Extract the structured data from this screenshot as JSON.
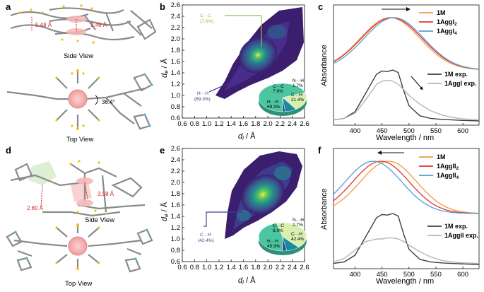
{
  "panels": {
    "a": {
      "label": "a",
      "side_view": "Side View",
      "top_view": "Top View",
      "d1": "5.48 Å",
      "d2": "3.46 Å",
      "angle": "36.4°"
    },
    "b": {
      "label": "b",
      "ylabel_main": "d",
      "ylabel_sub": "e",
      "ylabel_unit": " / Å",
      "xlabel_main": "d",
      "xlabel_sub": "i",
      "xlabel_unit": " / Å",
      "ann_cc": "C···C",
      "ann_cc_pct": "(7.6%)",
      "ann_hh": "H···H",
      "ann_hh_pct": "(69.3%)"
    },
    "c": {
      "label": "c",
      "ylabel": "Absorbance",
      "xlabel": "Wavelength / nm",
      "legend_top": [
        "1M",
        "1AggI",
        "1AggI"
      ],
      "legend_top_sub": [
        "",
        "2",
        "4"
      ],
      "legend_bottom": [
        "1M exp.",
        "1AggI exp."
      ]
    },
    "d": {
      "label": "d",
      "side_view": "Side View",
      "top_view": "Top View",
      "d1": "2.80 Å",
      "d2": "3.58 Å"
    },
    "e": {
      "label": "e",
      "ylabel_main": "d",
      "ylabel_sub": "e",
      "ylabel_unit": " / Å",
      "xlabel_main": "d",
      "xlabel_sub": "i",
      "xlabel_unit": " / Å",
      "ann_ch": "C···H",
      "ann_ch_pct": "(42.4%)"
    },
    "f": {
      "label": "f",
      "ylabel": "Absorbance",
      "xlabel": "Wavelength / nm",
      "legend_top": [
        "1M",
        "1AggII",
        "1AggII"
      ],
      "legend_top_sub": [
        "",
        "2",
        "4"
      ],
      "legend_bottom": [
        "1M exp.",
        "1AggII exp."
      ]
    }
  },
  "colors": {
    "orange": "#f39a3e",
    "red": "#e5352b",
    "blue": "#4f9fdb",
    "dark": "#3c3c3c",
    "grey": "#b5b5b5",
    "purple": "#4b2a86",
    "green": "#8bc34a"
  },
  "chart_data": [
    {
      "id": "b",
      "type": "scatter",
      "title": "",
      "xlabel": "di / Å",
      "ylabel": "de / Å",
      "xlim": [
        0.6,
        2.6
      ],
      "ylim": [
        0.6,
        2.6
      ],
      "xticks": [
        "0.6",
        "0.8",
        "1.0",
        "1.2",
        "1.4",
        "1.6",
        "1.8",
        "2.0",
        "2.2",
        "2.4",
        "2.6"
      ],
      "yticks": [
        "0.6",
        "0.8",
        "1.0",
        "1.2",
        "1.4",
        "1.6",
        "1.8",
        "2.0",
        "2.2",
        "2.4",
        "2.6"
      ],
      "pie": {
        "labels": [
          "H···H",
          "C···H",
          "C···C",
          "N···H"
        ],
        "values": [
          69.3,
          21.4,
          7.6,
          1.7
        ],
        "texts": [
          "H···H 69.3%",
          "C···H 21.4%",
          "C···C 7.6%",
          "N···H 1.7%"
        ]
      }
    },
    {
      "id": "c",
      "type": "line",
      "xlabel": "Wavelength / nm",
      "ylabel": "Absorbance",
      "xlim": [
        360,
        630
      ],
      "xticks": [
        "400",
        "450",
        "500",
        "550",
        "600"
      ],
      "series_calc": [
        {
          "name": "1M",
          "color": "#f39a3e",
          "peak": 465,
          "width": 58
        },
        {
          "name": "1AggI2",
          "color": "#e5352b",
          "peak": 468,
          "width": 59
        },
        {
          "name": "1AggI4",
          "color": "#4f9fdb",
          "peak": 472,
          "width": 58
        }
      ],
      "series_exp": [
        {
          "name": "1M exp.",
          "color": "#3c3c3c",
          "x": [
            360,
            380,
            400,
            420,
            440,
            450,
            460,
            470,
            480,
            490,
            500,
            520,
            540,
            560,
            580,
            600,
            630
          ],
          "y": [
            0.02,
            0.05,
            0.18,
            0.55,
            0.92,
            0.98,
            0.97,
            1.0,
            0.95,
            0.6,
            0.3,
            0.1,
            0.05,
            0.03,
            0.02,
            0.01,
            0.0
          ]
        },
        {
          "name": "1AggI exp.",
          "color": "#b5b5b5",
          "x": [
            360,
            380,
            400,
            420,
            440,
            450,
            460,
            470,
            480,
            490,
            500,
            520,
            540,
            560,
            580,
            600,
            630
          ],
          "y": [
            0.02,
            0.05,
            0.15,
            0.42,
            0.72,
            0.78,
            0.8,
            0.78,
            0.72,
            0.62,
            0.5,
            0.33,
            0.2,
            0.12,
            0.07,
            0.04,
            0.02
          ]
        }
      ]
    },
    {
      "id": "e",
      "type": "scatter",
      "title": "",
      "xlabel": "di / Å",
      "ylabel": "de / Å",
      "xlim": [
        0.6,
        2.6
      ],
      "ylim": [
        0.6,
        2.6
      ],
      "xticks": [
        "0.6",
        "0.8",
        "1.0",
        "1.2",
        "1.4",
        "1.6",
        "1.8",
        "2.0",
        "2.2",
        "2.4",
        "2.6"
      ],
      "yticks": [
        "0.6",
        "0.8",
        "1.0",
        "1.2",
        "1.4",
        "1.6",
        "1.8",
        "2.0",
        "2.2",
        "2.4",
        "2.6"
      ],
      "pie": {
        "labels": [
          "H···H",
          "C···H",
          "C···C",
          "N···H"
        ],
        "values": [
          45.9,
          42.4,
          8.9,
          2.7
        ],
        "texts": [
          "H···H 45.9%",
          "C···H 42.4%",
          "C···C 8.9%",
          "N···H 2.7%"
        ]
      }
    },
    {
      "id": "f",
      "type": "line",
      "xlabel": "Wavelength / nm",
      "ylabel": "Absorbance",
      "xlim": [
        360,
        630
      ],
      "xticks": [
        "400",
        "450",
        "500",
        "550",
        "600"
      ],
      "series_calc": [
        {
          "name": "1M",
          "color": "#f39a3e",
          "peak": 462,
          "width": 55
        },
        {
          "name": "1AggII2",
          "color": "#e5352b",
          "peak": 448,
          "width": 55
        },
        {
          "name": "1AggII4",
          "color": "#4f9fdb",
          "peak": 434,
          "width": 55
        }
      ],
      "series_exp": [
        {
          "name": "1M exp.",
          "color": "#3c3c3c",
          "x": [
            360,
            380,
            400,
            420,
            440,
            450,
            460,
            470,
            480,
            490,
            500,
            520,
            540,
            560,
            580,
            600,
            630
          ],
          "y": [
            0.02,
            0.05,
            0.18,
            0.55,
            0.92,
            0.98,
            0.97,
            1.0,
            0.95,
            0.6,
            0.3,
            0.1,
            0.05,
            0.03,
            0.02,
            0.01,
            0.0
          ]
        },
        {
          "name": "1AggII exp.",
          "color": "#b5b5b5",
          "x": [
            360,
            380,
            400,
            420,
            440,
            450,
            460,
            470,
            480,
            490,
            500,
            520,
            540,
            560,
            580,
            600,
            630
          ],
          "y": [
            0.05,
            0.12,
            0.28,
            0.45,
            0.5,
            0.5,
            0.52,
            0.52,
            0.5,
            0.45,
            0.38,
            0.25,
            0.15,
            0.08,
            0.05,
            0.03,
            0.02
          ]
        }
      ]
    }
  ]
}
